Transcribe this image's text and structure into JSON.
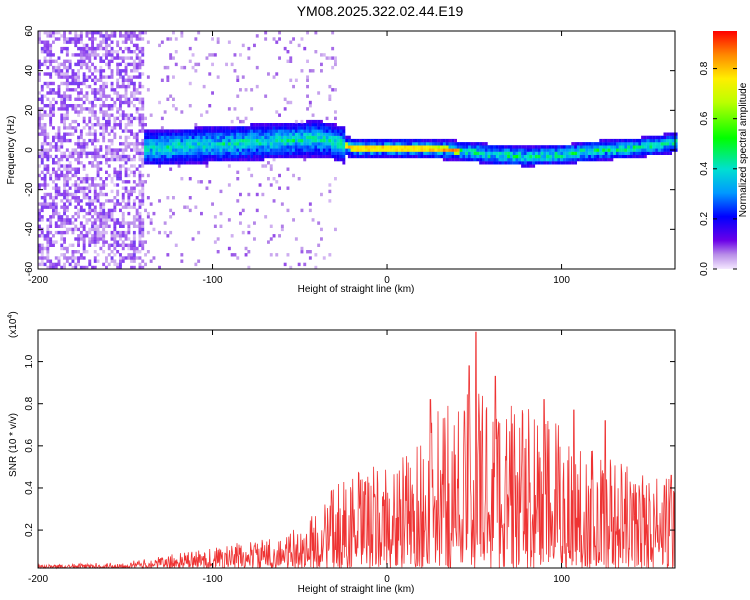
{
  "title": "YM08.2025.322.02.44.E19",
  "chart_data": [
    {
      "type": "heatmap",
      "name": "spectrogram",
      "xlabel": "Height of straight line (km)",
      "ylabel": "Frequency (Hz)",
      "xlim": [
        -200,
        165
      ],
      "ylim": [
        -60,
        60
      ],
      "xticks": [
        -200,
        -100,
        0,
        100
      ],
      "xtick_labels": [
        "-200",
        "-100",
        "0",
        "100"
      ],
      "yticks": [
        -60,
        -40,
        -20,
        0,
        20,
        40,
        60
      ],
      "ytick_labels": [
        "-60",
        "-40",
        "-20",
        "0",
        "20",
        "40",
        "60"
      ],
      "colorbar": {
        "label": "Normalized spectral amplitude",
        "range": [
          0,
          0.95
        ],
        "ticks": [
          0,
          0.2,
          0.4,
          0.6,
          0.8
        ],
        "tick_labels": [
          "0.0",
          "0.2",
          "0.4",
          "0.6",
          "0.8"
        ]
      },
      "band_center_hz": [
        {
          "x": -148,
          "y": 0
        },
        {
          "x": -120,
          "y": 1
        },
        {
          "x": -100,
          "y": 2
        },
        {
          "x": -80,
          "y": 3
        },
        {
          "x": -60,
          "y": 4
        },
        {
          "x": -40,
          "y": 5
        },
        {
          "x": -30,
          "y": 3
        },
        {
          "x": -20,
          "y": 0
        },
        {
          "x": 0,
          "y": 0
        },
        {
          "x": 20,
          "y": 0
        },
        {
          "x": 40,
          "y": -1
        },
        {
          "x": 60,
          "y": -3
        },
        {
          "x": 80,
          "y": -4
        },
        {
          "x": 100,
          "y": -3
        },
        {
          "x": 120,
          "y": -1
        },
        {
          "x": 140,
          "y": 0
        },
        {
          "x": 165,
          "y": 3
        }
      ],
      "peak_amplitude_region_km": [
        -25,
        40
      ],
      "noise_region_km": [
        -200,
        -140
      ]
    },
    {
      "type": "line",
      "name": "snr",
      "xlabel": "Height of straight line (km)",
      "ylabel": "SNR (10 * v/v)",
      "y_scale_label": "(x10",
      "y_scale_exponent": "4",
      "y_scale_suffix": ")",
      "xlim": [
        -200,
        165
      ],
      "ylim": [
        0.02,
        1.15
      ],
      "xticks": [
        -200,
        -100,
        0,
        100
      ],
      "xtick_labels": [
        "-200",
        "-100",
        "0",
        "100"
      ],
      "yticks": [
        0.2,
        0.4,
        0.6,
        0.8,
        1.0
      ],
      "ytick_labels": [
        "0.2",
        "0.4",
        "0.6",
        "0.8",
        "1.0"
      ],
      "color": "#ee3333",
      "envelope": [
        {
          "x": -200,
          "y": 0.035
        },
        {
          "x": -160,
          "y": 0.045
        },
        {
          "x": -140,
          "y": 0.06
        },
        {
          "x": -120,
          "y": 0.09
        },
        {
          "x": -100,
          "y": 0.12
        },
        {
          "x": -80,
          "y": 0.15
        },
        {
          "x": -60,
          "y": 0.17
        },
        {
          "x": -45,
          "y": 0.25
        },
        {
          "x": -30,
          "y": 0.42
        },
        {
          "x": -20,
          "y": 0.48
        },
        {
          "x": -10,
          "y": 0.5
        },
        {
          "x": 0,
          "y": 0.52
        },
        {
          "x": 10,
          "y": 0.56
        },
        {
          "x": 20,
          "y": 0.65
        },
        {
          "x": 30,
          "y": 0.78
        },
        {
          "x": 40,
          "y": 0.85
        },
        {
          "x": 50,
          "y": 0.95
        },
        {
          "x": 60,
          "y": 0.88
        },
        {
          "x": 80,
          "y": 0.78
        },
        {
          "x": 100,
          "y": 0.72
        },
        {
          "x": 120,
          "y": 0.6
        },
        {
          "x": 140,
          "y": 0.5
        },
        {
          "x": 165,
          "y": 0.45
        }
      ],
      "peaks": [
        {
          "x": 51,
          "y": 1.14
        },
        {
          "x": 47,
          "y": 0.98
        },
        {
          "x": 25,
          "y": 0.82
        },
        {
          "x": 62,
          "y": 0.93
        },
        {
          "x": 90,
          "y": 0.82
        },
        {
          "x": 107,
          "y": 0.77
        },
        {
          "x": 125,
          "y": 0.72
        },
        {
          "x": 163,
          "y": 0.46
        }
      ]
    }
  ]
}
